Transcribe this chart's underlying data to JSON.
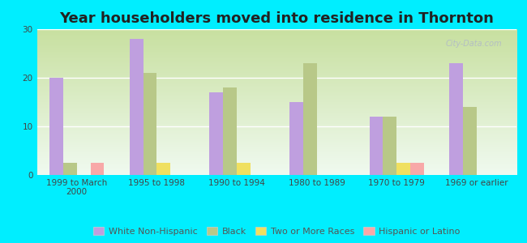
{
  "title": "Year householders moved into residence in Thornton",
  "background_color": "#00EEFF",
  "categories": [
    "1999 to March\n2000",
    "1995 to 1998",
    "1990 to 1994",
    "1980 to 1989",
    "1970 to 1979",
    "1969 or earlier"
  ],
  "series": {
    "White Non-Hispanic": {
      "values": [
        20,
        28,
        17,
        15,
        12,
        23
      ],
      "color": "#bf9fdf"
    },
    "Black": {
      "values": [
        2.5,
        21,
        18,
        23,
        12,
        14
      ],
      "color": "#b8c888"
    },
    "Two or More Races": {
      "values": [
        0,
        2.5,
        2.5,
        0,
        2.5,
        0
      ],
      "color": "#f0e060"
    },
    "Hispanic or Latino": {
      "values": [
        2.5,
        0,
        0,
        0,
        2.5,
        0
      ],
      "color": "#f8a8a8"
    }
  },
  "ylim": [
    0,
    30
  ],
  "yticks": [
    0,
    10,
    20,
    30
  ],
  "watermark": "City-Data.com",
  "title_fontsize": 13,
  "tick_fontsize": 7.5,
  "legend_fontsize": 8,
  "bar_width": 0.17
}
